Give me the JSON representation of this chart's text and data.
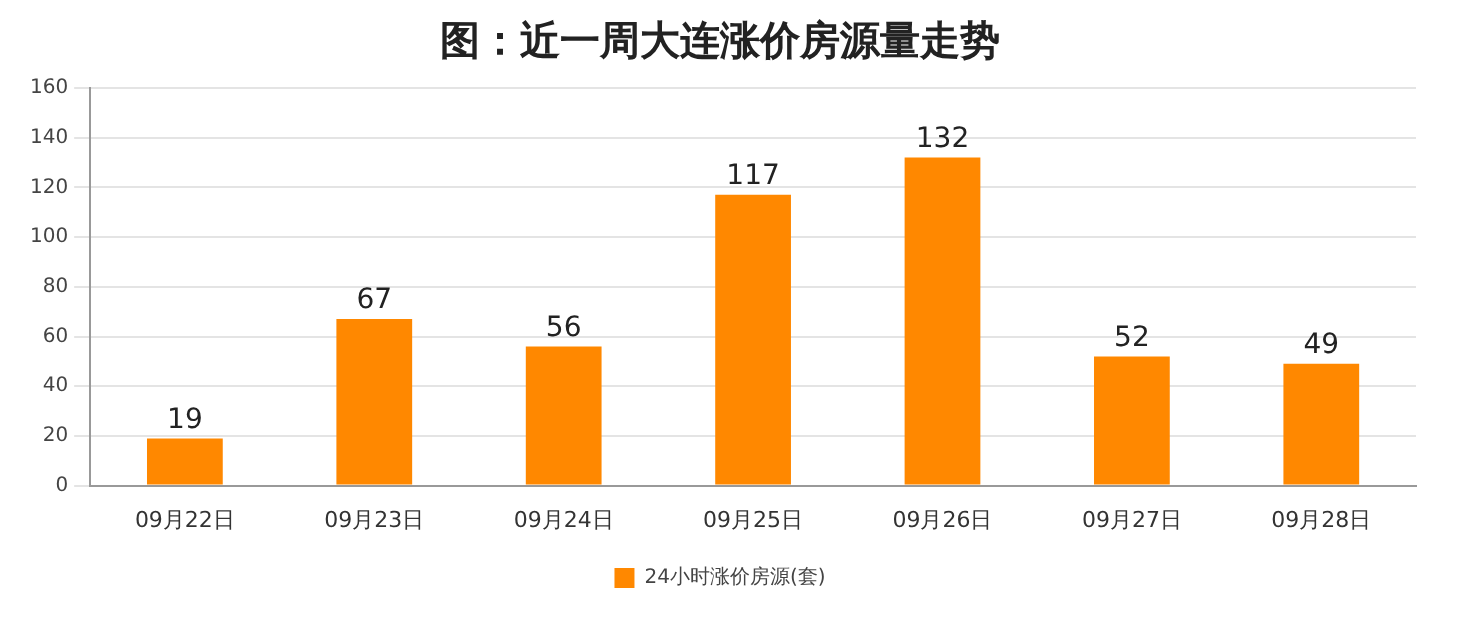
{
  "chart_data": {
    "type": "bar",
    "title": "图：近一周大连涨价房源量走势",
    "categories": [
      "09月22日",
      "09月23日",
      "09月24日",
      "09月25日",
      "09月26日",
      "09月27日",
      "09月28日"
    ],
    "series": [
      {
        "name": "24小时涨价房源(套)",
        "color": "#ff8800",
        "values": [
          19,
          67,
          56,
          117,
          132,
          52,
          49
        ]
      }
    ],
    "ylim": [
      0,
      160
    ],
    "yticks": [
      0,
      20,
      40,
      60,
      80,
      100,
      120,
      140,
      160
    ],
    "grid": "y",
    "legend": "bottom",
    "data_labels": true
  }
}
